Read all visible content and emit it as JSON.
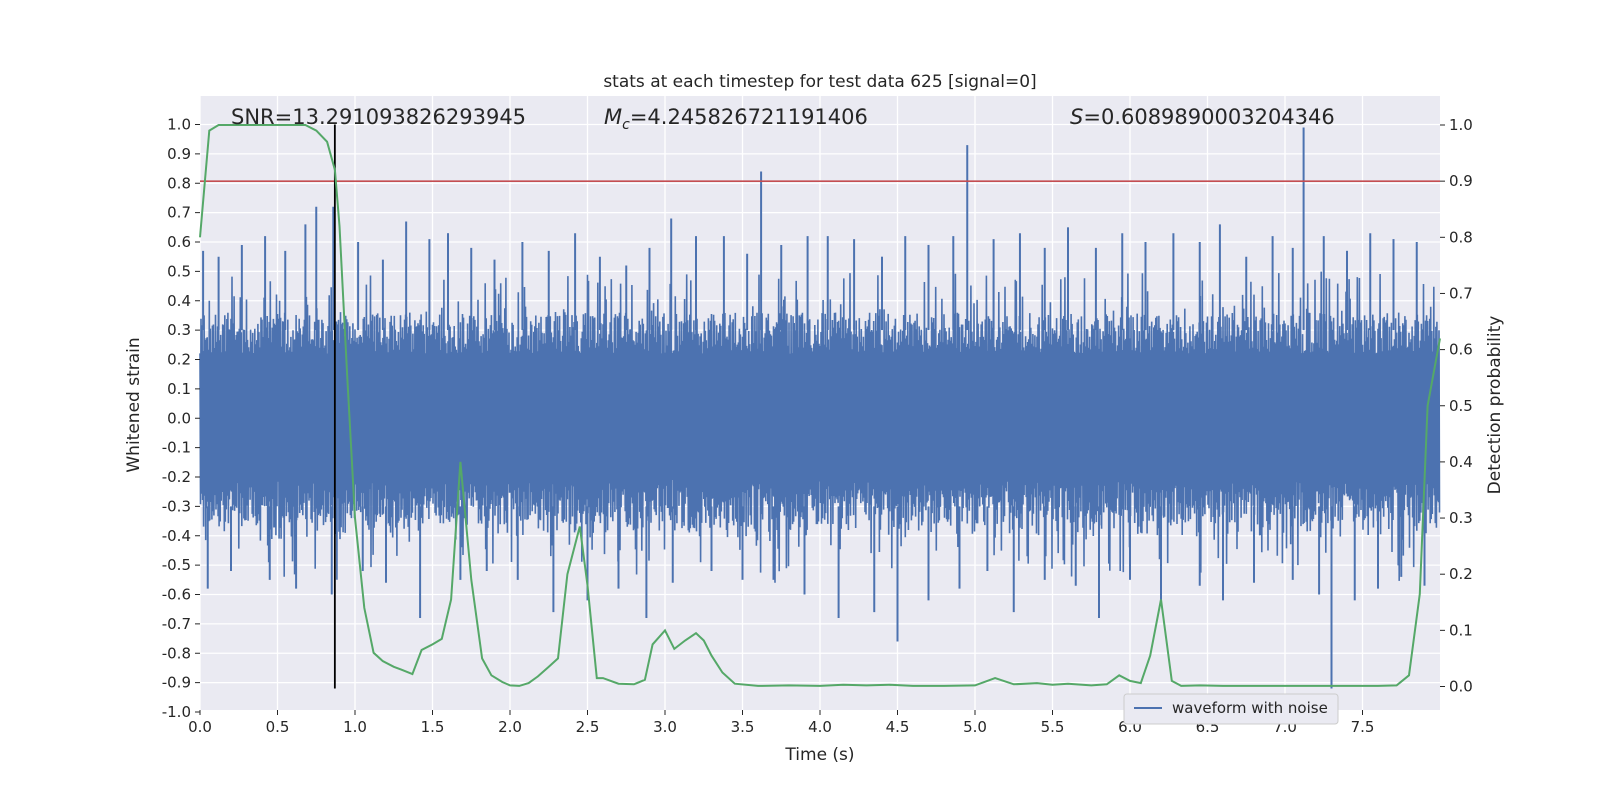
{
  "chart_data": {
    "type": "line",
    "title": "stats at each timestep for test data 625 [signal=0]",
    "xlabel": "Time (s)",
    "ylabel_left": "Whitened strain",
    "ylabel_right": "Detection probability",
    "xlim": [
      0,
      8
    ],
    "ylim_left": [
      -1.0,
      1.0
    ],
    "ylim_right": [
      -0.05,
      1.0
    ],
    "x_ticks": [
      "0.0",
      "0.5",
      "1.0",
      "1.5",
      "2.0",
      "2.5",
      "3.0",
      "3.5",
      "4.0",
      "4.5",
      "5.0",
      "5.5",
      "6.0",
      "6.5",
      "7.0",
      "7.5"
    ],
    "y_ticks_left": [
      "-1.0",
      "-0.9",
      "-0.8",
      "-0.7",
      "-0.6",
      "-0.5",
      "-0.4",
      "-0.3",
      "-0.2",
      "-0.1",
      "0.0",
      "0.1",
      "0.2",
      "0.3",
      "0.4",
      "0.5",
      "0.6",
      "0.7",
      "0.8",
      "0.9",
      "1.0"
    ],
    "y_ticks_right": [
      "0.0",
      "0.1",
      "0.2",
      "0.3",
      "0.4",
      "0.5",
      "0.6",
      "0.7",
      "0.8",
      "0.9",
      "1.0"
    ],
    "grid": true,
    "legend_placement": "bottom-center-right",
    "annotations": {
      "snr": "SNR=13.291093826293945",
      "mc_symbol": "M",
      "mc_sub": "c",
      "mc_value": "=4.245826721191406",
      "s_symbol": "S",
      "s_value": "=0.6089890003204346"
    },
    "threshold": {
      "value": 0.9,
      "axis": "right",
      "color": "#c44e52"
    },
    "marker_time": 0.87,
    "series": [
      {
        "name": "waveform with noise",
        "axis": "left",
        "color": "#4c72b0",
        "note_envelope": "dense noise trace",
        "spikes": [
          [
            0.02,
            0.57
          ],
          [
            0.12,
            0.55
          ],
          [
            0.27,
            0.59
          ],
          [
            0.42,
            0.62
          ],
          [
            0.55,
            0.57
          ],
          [
            0.68,
            0.66
          ],
          [
            0.75,
            0.72
          ],
          [
            0.86,
            0.72
          ],
          [
            1.02,
            0.6
          ],
          [
            1.18,
            0.54
          ],
          [
            1.33,
            0.67
          ],
          [
            1.48,
            0.61
          ],
          [
            1.6,
            0.63
          ],
          [
            1.75,
            0.58
          ],
          [
            1.9,
            0.54
          ],
          [
            2.08,
            0.6
          ],
          [
            2.25,
            0.57
          ],
          [
            2.42,
            0.63
          ],
          [
            2.58,
            0.55
          ],
          [
            2.75,
            0.52
          ],
          [
            2.9,
            0.58
          ],
          [
            3.04,
            0.68
          ],
          [
            3.2,
            0.62
          ],
          [
            3.38,
            0.62
          ],
          [
            3.53,
            0.56
          ],
          [
            3.62,
            0.84
          ],
          [
            3.75,
            0.59
          ],
          [
            3.92,
            0.62
          ],
          [
            4.05,
            0.62
          ],
          [
            4.22,
            0.61
          ],
          [
            4.4,
            0.55
          ],
          [
            4.55,
            0.62
          ],
          [
            4.7,
            0.59
          ],
          [
            4.86,
            0.62
          ],
          [
            4.95,
            0.93
          ],
          [
            5.12,
            0.61
          ],
          [
            5.29,
            0.63
          ],
          [
            5.45,
            0.58
          ],
          [
            5.6,
            0.65
          ],
          [
            5.78,
            0.58
          ],
          [
            5.95,
            0.63
          ],
          [
            6.1,
            0.6
          ],
          [
            6.28,
            0.63
          ],
          [
            6.45,
            0.6
          ],
          [
            6.58,
            0.66
          ],
          [
            6.75,
            0.55
          ],
          [
            6.92,
            0.62
          ],
          [
            7.05,
            0.58
          ],
          [
            7.12,
            0.99
          ],
          [
            7.25,
            0.62
          ],
          [
            7.4,
            0.57
          ],
          [
            7.55,
            0.63
          ],
          [
            7.7,
            0.61
          ],
          [
            7.85,
            0.6
          ]
        ],
        "dips": [
          [
            0.05,
            -0.58
          ],
          [
            0.2,
            -0.52
          ],
          [
            0.45,
            -0.55
          ],
          [
            0.62,
            -0.58
          ],
          [
            0.85,
            -0.6
          ],
          [
            1.05,
            -0.52
          ],
          [
            1.2,
            -0.56
          ],
          [
            1.42,
            -0.68
          ],
          [
            1.68,
            -0.55
          ],
          [
            1.85,
            -0.52
          ],
          [
            2.05,
            -0.55
          ],
          [
            2.28,
            -0.66
          ],
          [
            2.5,
            -0.62
          ],
          [
            2.7,
            -0.58
          ],
          [
            2.88,
            -0.68
          ],
          [
            3.05,
            -0.56
          ],
          [
            3.3,
            -0.52
          ],
          [
            3.5,
            -0.55
          ],
          [
            3.7,
            -0.55
          ],
          [
            3.9,
            -0.6
          ],
          [
            4.12,
            -0.68
          ],
          [
            4.35,
            -0.66
          ],
          [
            4.5,
            -0.76
          ],
          [
            4.7,
            -0.62
          ],
          [
            4.9,
            -0.58
          ],
          [
            5.08,
            -0.52
          ],
          [
            5.25,
            -0.66
          ],
          [
            5.45,
            -0.55
          ],
          [
            5.65,
            -0.57
          ],
          [
            5.8,
            -0.68
          ],
          [
            6.0,
            -0.55
          ],
          [
            6.2,
            -0.62
          ],
          [
            6.45,
            -0.57
          ],
          [
            6.6,
            -0.62
          ],
          [
            6.8,
            -0.56
          ],
          [
            7.05,
            -0.55
          ],
          [
            7.22,
            -0.6
          ],
          [
            7.3,
            -0.92
          ],
          [
            7.45,
            -0.62
          ],
          [
            7.6,
            -0.58
          ],
          [
            7.75,
            -0.54
          ],
          [
            7.9,
            -0.57
          ]
        ]
      },
      {
        "name": "",
        "axis": "right",
        "color": "#55a868",
        "x": [
          0.0,
          0.06,
          0.12,
          0.25,
          0.4,
          0.55,
          0.68,
          0.75,
          0.82,
          0.87,
          0.9,
          0.95,
          1.0,
          1.06,
          1.12,
          1.18,
          1.25,
          1.3,
          1.37,
          1.43,
          1.5,
          1.56,
          1.62,
          1.68,
          1.75,
          1.82,
          1.88,
          1.95,
          2.0,
          2.06,
          2.12,
          2.18,
          2.25,
          2.31,
          2.37,
          2.45,
          2.5,
          2.56,
          2.6,
          2.7,
          2.8,
          2.87,
          2.92,
          3.0,
          3.06,
          3.13,
          3.2,
          3.25,
          3.3,
          3.37,
          3.45,
          3.6,
          3.8,
          4.0,
          4.15,
          4.3,
          4.45,
          4.6,
          4.8,
          5.0,
          5.13,
          5.25,
          5.4,
          5.5,
          5.6,
          5.75,
          5.85,
          5.93,
          6.0,
          6.07,
          6.13,
          6.2,
          6.27,
          6.33,
          6.45,
          6.6,
          6.8,
          7.0,
          7.2,
          7.4,
          7.6,
          7.72,
          7.8,
          7.87,
          7.92,
          8.0
        ],
        "values": [
          0.8,
          0.99,
          1.0,
          1.0,
          1.0,
          1.0,
          1.0,
          0.99,
          0.97,
          0.92,
          0.82,
          0.55,
          0.3,
          0.14,
          0.06,
          0.045,
          0.035,
          0.03,
          0.022,
          0.065,
          0.075,
          0.085,
          0.155,
          0.4,
          0.19,
          0.05,
          0.02,
          0.008,
          0.002,
          0.001,
          0.006,
          0.018,
          0.035,
          0.05,
          0.2,
          0.285,
          0.18,
          0.015,
          0.015,
          0.005,
          0.004,
          0.012,
          0.075,
          0.1,
          0.067,
          0.082,
          0.095,
          0.082,
          0.055,
          0.025,
          0.005,
          0.001,
          0.002,
          0.001,
          0.003,
          0.002,
          0.003,
          0.001,
          0.001,
          0.002,
          0.015,
          0.004,
          0.006,
          0.003,
          0.005,
          0.002,
          0.004,
          0.02,
          0.01,
          0.006,
          0.055,
          0.155,
          0.01,
          0.001,
          0.002,
          0.001,
          0.001,
          0.001,
          0.001,
          0.001,
          0.001,
          0.002,
          0.02,
          0.165,
          0.5,
          0.62
        ]
      }
    ]
  }
}
